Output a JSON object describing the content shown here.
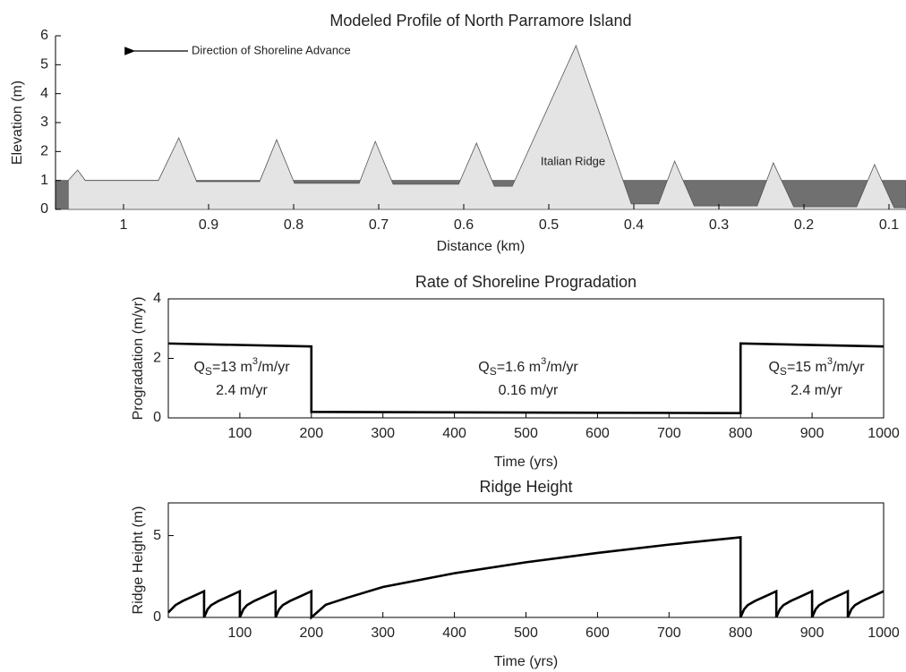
{
  "chart_data": [
    {
      "type": "area",
      "title": "Modeled Profile of North Parramore Island",
      "x_label": "Distance (km)",
      "y_label": "Elevation (m)",
      "xlim": [
        1.08,
        0.08
      ],
      "xticks": [
        1,
        0.9,
        0.8,
        0.7,
        0.6,
        0.5,
        0.4,
        0.3,
        0.2,
        0.1
      ],
      "ylim": [
        0,
        6
      ],
      "yticks": [
        0,
        1,
        2,
        3,
        4,
        5,
        6
      ],
      "box": false,
      "annotations": [
        "Direction of Shoreline Advance",
        "Italian Ridge"
      ],
      "series": [
        {
          "color": "#707070",
          "x": [
            1.08,
            0.08
          ],
          "values": [
            1,
            1
          ]
        },
        {
          "color": "#e4e4e4",
          "x": [
            1.065,
            1.054,
            1.045,
            0.959,
            0.935,
            0.914,
            0.84,
            0.82,
            0.799,
            0.723,
            0.704,
            0.683,
            0.606,
            0.585,
            0.564,
            0.543,
            0.468,
            0.403,
            0.371,
            0.352,
            0.329,
            0.255,
            0.236,
            0.212,
            0.138,
            0.117,
            0.094,
            0.08
          ],
          "values": [
            1,
            1.36,
            1,
            1,
            2.47,
            0.96,
            0.96,
            2.41,
            0.9,
            0.9,
            2.35,
            0.87,
            0.87,
            2.29,
            0.8,
            0.8,
            5.66,
            0.19,
            0.19,
            1.67,
            0.12,
            0.12,
            1.61,
            0.09,
            0.09,
            1.55,
            0.06,
            0.06
          ]
        }
      ]
    },
    {
      "type": "line",
      "title": "Rate of Shoreline Progradation",
      "x_label": "Time (yrs)",
      "y_label": "Progradation (m/yr)",
      "xlim": [
        0,
        1000
      ],
      "xticks": [
        100,
        200,
        300,
        400,
        500,
        600,
        700,
        800,
        900,
        1000
      ],
      "ylim": [
        0,
        4
      ],
      "yticks": [
        0,
        2,
        4
      ],
      "box": true,
      "annotations": [
        {
          "q": [
            "Q",
            "S",
            "=13 m",
            "3",
            "/m/yr"
          ],
          "rate": "2.4 m/yr"
        },
        {
          "q": [
            "Q",
            "S",
            "=1.6 m",
            "3",
            "/m/yr"
          ],
          "rate": "0.16 m/yr"
        },
        {
          "q": [
            "Q",
            "S",
            "=15 m",
            "3",
            "/m/yr"
          ],
          "rate": "2.4 m/yr"
        }
      ],
      "series": [
        {
          "color": "#000000",
          "x": [
            0,
            200,
            200,
            800,
            800,
            1000
          ],
          "values": [
            2.5,
            2.4,
            0.2,
            0.16,
            2.5,
            2.4
          ]
        }
      ]
    },
    {
      "type": "line",
      "title": "Ridge Height",
      "x_label": "Time (yrs)",
      "y_label": "Ridge Height (m)",
      "xlim": [
        0,
        1000
      ],
      "xticks": [
        100,
        200,
        300,
        400,
        500,
        600,
        700,
        800,
        900,
        1000
      ],
      "ylim": [
        0,
        7
      ],
      "yticks": [
        0,
        5
      ],
      "box": true,
      "annotations": [],
      "series": [
        {
          "color": "#000000",
          "x": [
            0,
            10,
            20,
            30,
            40,
            50,
            50,
            55,
            60,
            70,
            80,
            90,
            100,
            100,
            105,
            110,
            120,
            130,
            140,
            150,
            150,
            155,
            160,
            170,
            180,
            190,
            200,
            200,
            220,
            250,
            300,
            400,
            500,
            600,
            700,
            800,
            800,
            805,
            810,
            820,
            830,
            840,
            850,
            850,
            855,
            860,
            870,
            880,
            890,
            900,
            900,
            905,
            910,
            920,
            930,
            940,
            950,
            950,
            955,
            960,
            970,
            980,
            990,
            1000
          ],
          "values": [
            0.3,
            0.75,
            1.0,
            1.2,
            1.4,
            1.6,
            0,
            0.5,
            0.75,
            1.0,
            1.2,
            1.4,
            1.6,
            0,
            0.5,
            0.75,
            1.0,
            1.2,
            1.4,
            1.6,
            0,
            0.5,
            0.75,
            1.0,
            1.2,
            1.4,
            1.6,
            0,
            0.77,
            1.2,
            1.86,
            2.7,
            3.37,
            3.94,
            4.45,
            4.9,
            0,
            0.5,
            0.75,
            1.0,
            1.2,
            1.4,
            1.6,
            0,
            0.5,
            0.75,
            1.0,
            1.2,
            1.4,
            1.6,
            0,
            0.5,
            0.75,
            1.0,
            1.2,
            1.4,
            1.6,
            0,
            0.5,
            0.75,
            1.0,
            1.2,
            1.4,
            1.6
          ]
        }
      ]
    }
  ]
}
